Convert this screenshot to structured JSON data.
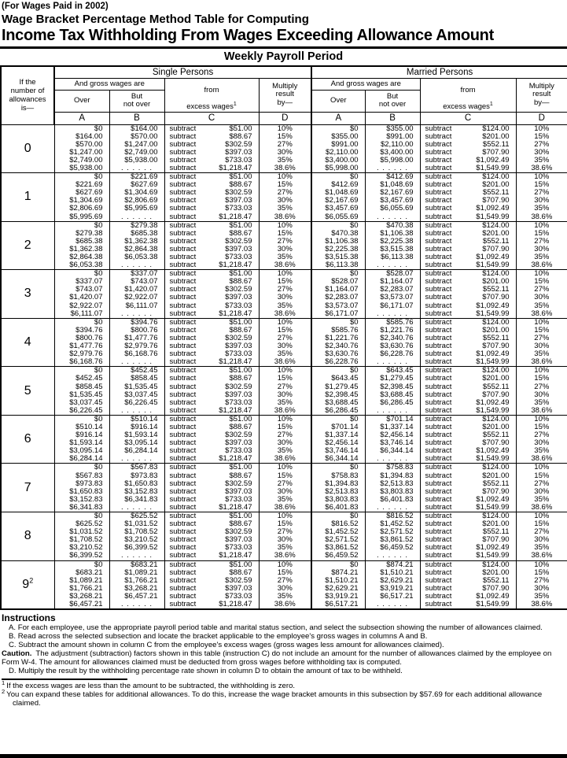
{
  "page": {
    "paid_note": "(For Wages Paid in 2002)",
    "subtitle": "Wage Bracket Percentage Method Table for Computing",
    "title": "Income Tax Withholding From Wages Exceeding Allowance Amount",
    "period": "Weekly Payroll Period"
  },
  "table": {
    "allowances_header": [
      "If the",
      "number of",
      "allowances",
      "is—"
    ],
    "sections": {
      "single": "Single Persons",
      "married": "Married Persons"
    },
    "gross_header": "And gross wages are",
    "over_label": "Over",
    "but_not_over_label": [
      "But",
      "not over"
    ],
    "excess_line1": "from",
    "excess_line2": "excess wages",
    "excess_sup": "1",
    "multiply_label": [
      "Multiply",
      "result",
      "by—"
    ],
    "letters": [
      "A",
      "B",
      "C",
      "D"
    ],
    "subtract_word": "subtract",
    "rates": [
      "10%",
      "15%",
      "27%",
      "30%",
      "35%",
      "38.6%"
    ],
    "single_subtract_amounts": [
      "$51.00",
      "$88.67",
      "$302.59",
      "$397.03",
      "$733.03",
      "$1,218.47"
    ],
    "married_subtract_amounts": [
      "$124.00",
      "$201.00",
      "$552.11",
      "$707.90",
      "$1,092.49",
      "$1,549.99"
    ],
    "rows": [
      {
        "n": "0",
        "s_over": [
          "$0",
          "$164.00",
          "$570.00",
          "$1,247.00",
          "$2,749.00",
          "$5,938.00"
        ],
        "s_not": [
          "$164.00",
          "$570.00",
          "$1,247.00",
          "$2,749.00",
          "$5,938.00",
          ". . . . . ."
        ],
        "m_over": [
          "$0",
          "$355.00",
          "$991.00",
          "$2,110.00",
          "$3,400.00",
          "$5,998.00"
        ],
        "m_not": [
          "$355.00",
          "$991.00",
          "$2,110.00",
          "$3,400.00",
          "$5,998.00",
          ". . . . . ."
        ]
      },
      {
        "n": "1",
        "s_over": [
          "$0",
          "$221.69",
          "$627.69",
          "$1,304.69",
          "$2,806.69",
          "$5,995.69"
        ],
        "s_not": [
          "$221.69",
          "$627.69",
          "$1,304.69",
          "$2,806.69",
          "$5,995.69",
          ". . . . . ."
        ],
        "m_over": [
          "$0",
          "$412.69",
          "$1,048.69",
          "$2,167.69",
          "$3,457.69",
          "$6,055.69"
        ],
        "m_not": [
          "$412.69",
          "$1,048.69",
          "$2,167.69",
          "$3,457.69",
          "$6,055.69",
          ". . . . . ."
        ]
      },
      {
        "n": "2",
        "s_over": [
          "$0",
          "$279.38",
          "$685.38",
          "$1,362.38",
          "$2,864.38",
          "$6,053.38"
        ],
        "s_not": [
          "$279.38",
          "$685.38",
          "$1,362.38",
          "$2,864.38",
          "$6,053.38",
          ". . . . . ."
        ],
        "m_over": [
          "$0",
          "$470.38",
          "$1,106.38",
          "$2,225.38",
          "$3,515.38",
          "$6,113.38"
        ],
        "m_not": [
          "$470.38",
          "$1,106.38",
          "$2,225.38",
          "$3,515.38",
          "$6,113.38",
          ". . . . . ."
        ]
      },
      {
        "n": "3",
        "s_over": [
          "$0",
          "$337.07",
          "$743.07",
          "$1,420.07",
          "$2,922.07",
          "$6,111.07"
        ],
        "s_not": [
          "$337.07",
          "$743.07",
          "$1,420.07",
          "$2,922.07",
          "$6,111.07",
          ". . . . . ."
        ],
        "m_over": [
          "$0",
          "$528.07",
          "$1,164.07",
          "$2,283.07",
          "$3,573.07",
          "$6,171.07"
        ],
        "m_not": [
          "$528.07",
          "$1,164.07",
          "$2,283.07",
          "$3,573.07",
          "$6,171.07",
          ". . . . . ."
        ]
      },
      {
        "n": "4",
        "s_over": [
          "$0",
          "$394.76",
          "$800.76",
          "$1,477.76",
          "$2,979.76",
          "$6,168.76"
        ],
        "s_not": [
          "$394.76",
          "$800.76",
          "$1,477.76",
          "$2,979.76",
          "$6,168.76",
          ". . . . . ."
        ],
        "m_over": [
          "$0",
          "$585.76",
          "$1,221.76",
          "$2,340.76",
          "$3,630.76",
          "$6,228.76"
        ],
        "m_not": [
          "$585.76",
          "$1,221.76",
          "$2,340.76",
          "$3,630.76",
          "$6,228.76",
          ". . . . . ."
        ]
      },
      {
        "n": "5",
        "s_over": [
          "$0",
          "$452.45",
          "$858.45",
          "$1,535.45",
          "$3,037.45",
          "$6,226.45"
        ],
        "s_not": [
          "$452.45",
          "$858.45",
          "$1,535.45",
          "$3,037.45",
          "$6,226.45",
          ". . . . . ."
        ],
        "m_over": [
          "$0",
          "$643.45",
          "$1,279.45",
          "$2,398.45",
          "$3,688.45",
          "$6,286.45"
        ],
        "m_not": [
          "$643.45",
          "$1,279.45",
          "$2,398.45",
          "$3,688.45",
          "$6,286.45",
          ". . . . . ."
        ]
      },
      {
        "n": "6",
        "s_over": [
          "$0",
          "$510.14",
          "$916.14",
          "$1,593.14",
          "$3,095.14",
          "$6,284.14"
        ],
        "s_not": [
          "$510.14",
          "$916.14",
          "$1,593.14",
          "$3,095.14",
          "$6,284.14",
          ". . . . . ."
        ],
        "m_over": [
          "$0",
          "$701.14",
          "$1,337.14",
          "$2,456.14",
          "$3,746.14",
          "$6,344.14"
        ],
        "m_not": [
          "$701.14",
          "$1,337.14",
          "$2,456.14",
          "$3,746.14",
          "$6,344.14",
          ". . . . . ."
        ]
      },
      {
        "n": "7",
        "s_over": [
          "$0",
          "$567.83",
          "$973.83",
          "$1,650.83",
          "$3,152.83",
          "$6,341.83"
        ],
        "s_not": [
          "$567.83",
          "$973.83",
          "$1,650.83",
          "$3,152.83",
          "$6,341.83",
          ". . . . . ."
        ],
        "m_over": [
          "$0",
          "$758.83",
          "$1,394.83",
          "$2,513.83",
          "$3,803.83",
          "$6,401.83"
        ],
        "m_not": [
          "$758.83",
          "$1,394.83",
          "$2,513.83",
          "$3,803.83",
          "$6,401.83",
          ". . . . . ."
        ]
      },
      {
        "n": "8",
        "s_over": [
          "$0",
          "$625.52",
          "$1,031.52",
          "$1,708.52",
          "$3,210.52",
          "$6,399.52"
        ],
        "s_not": [
          "$625.52",
          "$1,031.52",
          "$1,708.52",
          "$3,210.52",
          "$6,399.52",
          ". . . . . ."
        ],
        "m_over": [
          "$0",
          "$816.52",
          "$1,452.52",
          "$2,571.52",
          "$3,861.52",
          "$6,459.52"
        ],
        "m_not": [
          "$816.52",
          "$1,452.52",
          "$2,571.52",
          "$3,861.52",
          "$6,459.52",
          ". . . . . ."
        ]
      },
      {
        "n": "9",
        "sup": "2",
        "s_over": [
          "$0",
          "$683.21",
          "$1,089.21",
          "$1,766.21",
          "$3,268.21",
          "$6,457.21"
        ],
        "s_not": [
          "$683.21",
          "$1,089.21",
          "$1,766.21",
          "$3,268.21",
          "$6,457.21",
          ". . . . . ."
        ],
        "m_over": [
          "$0",
          "$874.21",
          "$1,510.21",
          "$2,629.21",
          "$3,919.21",
          "$6,517.21"
        ],
        "m_not": [
          "$874.21",
          "$1,510.21",
          "$2,629.21",
          "$3,919.21",
          "$6,517.21",
          ". . . . . ."
        ]
      }
    ]
  },
  "instructions": {
    "heading": "Instructions",
    "a": "A. For each employee, use the appropriate payroll period table and marital status section, and select the subsection showing the number of allowances claimed.",
    "b": "B. Read across the selected subsection and locate the bracket applicable to the employee's gross wages in columns A and B.",
    "c": "C. Subtract the amount shown in column C from the employee's excess wages (gross wages less amount for allowances claimed).",
    "caution_label": "Caution.",
    "caution": "The adjustment (subtraction) factors shown in this table (instruction C) do not include an amount for the number of allowances claimed by the employee on Form W-4. The amount for allowances claimed must be deducted from gross wages before withholding tax is computed.",
    "d": "D. Multiply the result by the withholding percentage rate shown in column D to obtain the amount of tax to be withheld."
  },
  "footnotes": [
    {
      "marker": "1",
      "text": "If the excess wages are less than the amount to be subtracted, the withholding is zero."
    },
    {
      "marker": "2",
      "text": "You can expand these tables for additional allowances. To do this, increase the wage bracket amounts in this subsection by $57.69 for each additional allowance claimed."
    }
  ]
}
